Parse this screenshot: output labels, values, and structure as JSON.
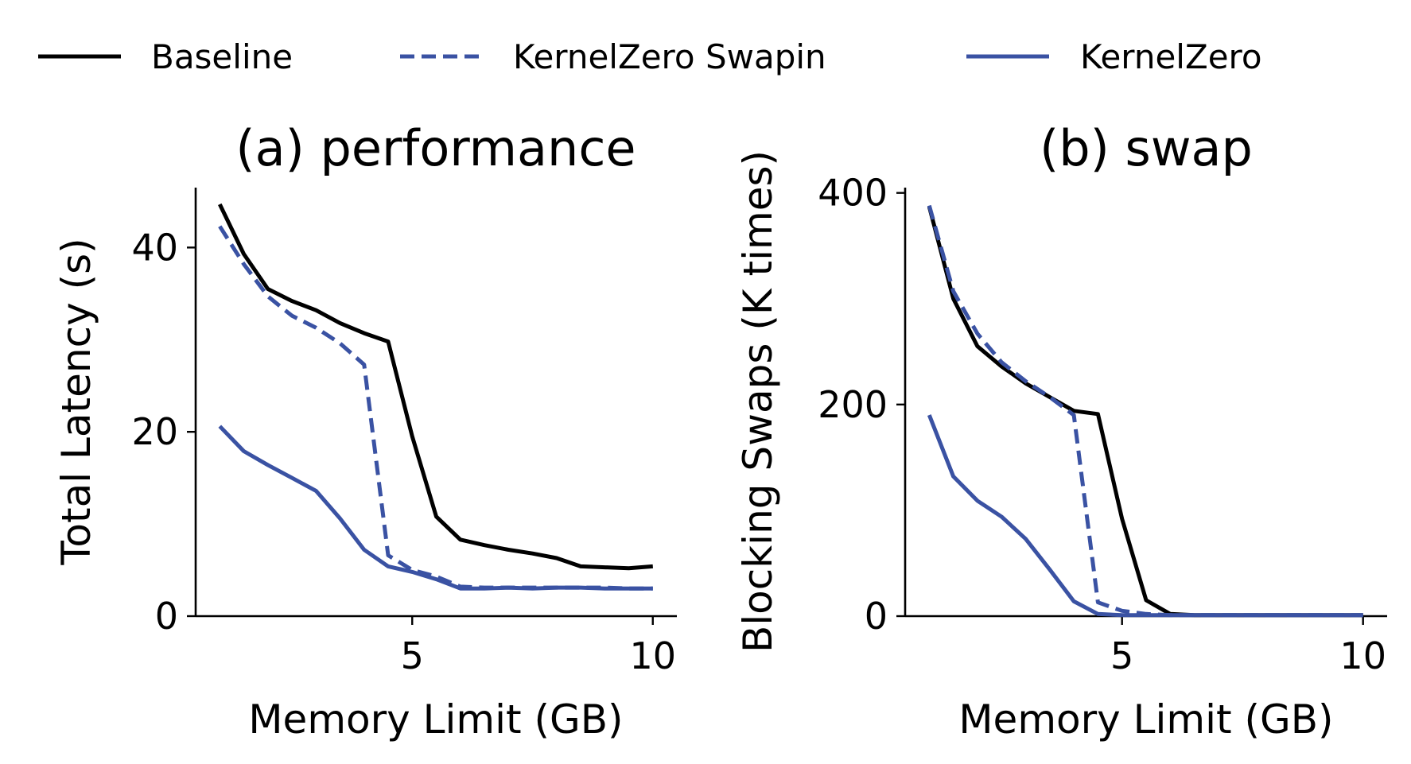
{
  "legend": [
    {
      "label": "Baseline",
      "color": "#000000",
      "dash": "solid"
    },
    {
      "label": "KernelZero Swapin",
      "color": "#3a52a3",
      "dash": "dashed"
    },
    {
      "label": "KernelZero",
      "color": "#3a52a3",
      "dash": "solid"
    }
  ],
  "chart_data": [
    {
      "type": "line",
      "title": "(a) performance",
      "xlabel": "Memory Limit (GB)",
      "ylabel": "Total Latency (s)",
      "xlim": [
        0.5,
        10.5
      ],
      "ylim": [
        0,
        46.5
      ],
      "xticks": [
        5,
        10
      ],
      "yticks": [
        0,
        20,
        40
      ],
      "series": [
        {
          "name": "Baseline",
          "x": [
            1,
            1.5,
            2,
            2.5,
            3,
            3.5,
            4,
            4.5,
            5,
            5.5,
            6,
            6.5,
            7,
            7.5,
            8,
            8.5,
            9,
            9.5,
            10
          ],
          "values": [
            44.7,
            39.3,
            35.5,
            34.2,
            33.2,
            31.8,
            30.7,
            29.8,
            19.5,
            10.8,
            8.3,
            7.7,
            7.2,
            6.8,
            6.3,
            5.4,
            5.3,
            5.2,
            5.4
          ]
        },
        {
          "name": "KernelZero Swapin",
          "x": [
            1,
            1.5,
            2,
            2.5,
            3,
            3.5,
            4,
            4.5,
            5,
            5.5,
            6,
            6.5,
            7,
            7.5,
            8,
            8.5,
            9,
            9.5,
            10
          ],
          "values": [
            42.3,
            38.2,
            34.7,
            32.6,
            31.3,
            29.6,
            27.3,
            6.6,
            5.0,
            4.3,
            3.2,
            3.1,
            3.1,
            3.1,
            3.1,
            3.1,
            3.1,
            3.0,
            3.0
          ]
        },
        {
          "name": "KernelZero",
          "x": [
            1,
            1.5,
            2,
            2.5,
            3,
            3.5,
            4,
            4.5,
            5,
            5.5,
            6,
            6.5,
            7,
            7.5,
            8,
            8.5,
            9,
            9.5,
            10
          ],
          "values": [
            20.6,
            17.9,
            16.4,
            15.0,
            13.6,
            10.6,
            7.2,
            5.4,
            4.8,
            4.0,
            3.0,
            3.0,
            3.1,
            3.0,
            3.1,
            3.1,
            3.0,
            3.0,
            3.0
          ]
        }
      ]
    },
    {
      "type": "line",
      "title": "(b) swap",
      "xlabel": "Memory Limit (GB)",
      "ylabel": "Blocking Swaps (K times)",
      "xlim": [
        0.5,
        10.5
      ],
      "ylim": [
        0,
        405
      ],
      "xticks": [
        5,
        10
      ],
      "yticks": [
        0,
        200,
        400
      ],
      "series": [
        {
          "name": "Baseline",
          "x": [
            1,
            1.5,
            2,
            2.5,
            3,
            3.5,
            4,
            4.5,
            5,
            5.5,
            6,
            6.5,
            7,
            7.5,
            8,
            8.5,
            9,
            9.5,
            10
          ],
          "values": [
            387,
            300,
            255,
            236,
            220,
            207,
            194,
            191,
            92,
            15,
            2,
            1,
            1,
            1,
            1,
            1,
            1,
            1,
            1
          ]
        },
        {
          "name": "KernelZero Swapin",
          "x": [
            1,
            1.5,
            2,
            2.5,
            3,
            3.5,
            4,
            4.5,
            5,
            5.5,
            6,
            6.5,
            7,
            7.5,
            8,
            8.5,
            9,
            9.5,
            10
          ],
          "values": [
            388,
            307,
            267,
            240,
            222,
            207,
            190,
            13,
            5,
            2,
            1,
            1,
            1,
            1,
            1,
            1,
            1,
            1,
            1
          ]
        },
        {
          "name": "KernelZero",
          "x": [
            1,
            1.5,
            2,
            2.5,
            3,
            3.5,
            4,
            4.5,
            5,
            5.5,
            6,
            6.5,
            7,
            7.5,
            8,
            8.5,
            9,
            9.5,
            10
          ],
          "values": [
            190,
            132,
            109,
            94,
            73,
            44,
            14,
            2,
            1,
            1,
            1,
            1,
            1,
            1,
            1,
            1,
            1,
            1,
            1
          ]
        }
      ]
    }
  ]
}
